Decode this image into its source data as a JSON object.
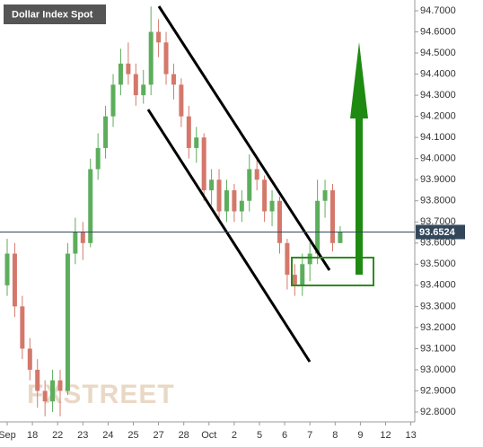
{
  "chart_data": {
    "type": "candlestick",
    "title": "Dollar Index Spot",
    "watermark": "FXSTREET",
    "categories": [
      "Sep",
      "18",
      "22",
      "23",
      "24",
      "25",
      "27",
      "28",
      "Oct",
      "2",
      "5",
      "6",
      "7",
      "8",
      "9",
      "12",
      "13"
    ],
    "x": [
      0,
      0.3,
      0.6,
      0.9,
      1.2,
      1.5,
      1.8,
      2.1,
      2.4,
      2.7,
      3.0,
      3.3,
      3.6,
      3.9,
      4.2,
      4.5,
      4.8,
      5.1,
      5.4,
      5.7,
      6.0,
      6.3,
      6.6,
      6.9,
      7.2,
      7.5,
      7.8,
      8.1,
      8.4,
      8.7,
      9.0,
      9.3,
      9.6,
      9.9,
      10.2,
      10.5,
      10.8,
      11.1,
      11.4,
      11.7,
      12.0,
      12.3,
      12.6,
      12.9,
      13.2
    ],
    "open": [
      93.4,
      93.55,
      93.3,
      93.1,
      93.0,
      92.9,
      92.85,
      92.95,
      92.9,
      93.55,
      93.65,
      93.6,
      93.95,
      94.05,
      94.2,
      94.35,
      94.45,
      94.4,
      94.3,
      94.35,
      94.6,
      94.55,
      94.4,
      94.35,
      94.2,
      94.05,
      94.1,
      93.85,
      93.9,
      93.75,
      93.85,
      93.75,
      93.8,
      93.95,
      93.9,
      93.75,
      93.8,
      93.6,
      93.45,
      93.4,
      93.5,
      93.55,
      93.8,
      93.85,
      93.6
    ],
    "high": [
      93.62,
      93.6,
      93.35,
      93.15,
      93.05,
      92.95,
      93.0,
      93.0,
      93.6,
      93.72,
      93.7,
      94.0,
      94.12,
      94.25,
      94.4,
      94.52,
      94.55,
      94.45,
      94.42,
      94.72,
      94.66,
      94.6,
      94.45,
      94.38,
      94.25,
      94.15,
      94.12,
      93.95,
      93.95,
      93.9,
      93.88,
      93.85,
      94.02,
      94.0,
      93.92,
      93.85,
      93.82,
      93.62,
      93.5,
      93.55,
      93.6,
      93.9,
      93.9,
      93.88,
      93.68
    ],
    "low": [
      93.35,
      93.25,
      93.05,
      92.95,
      92.82,
      92.78,
      92.8,
      92.78,
      92.88,
      93.5,
      93.52,
      93.58,
      93.9,
      94.0,
      94.15,
      94.3,
      94.35,
      94.25,
      94.26,
      94.3,
      94.48,
      94.35,
      94.28,
      94.15,
      94.0,
      93.98,
      93.8,
      93.78,
      93.7,
      93.7,
      93.7,
      93.7,
      93.75,
      93.85,
      93.7,
      93.68,
      93.55,
      93.38,
      93.35,
      93.35,
      93.42,
      93.5,
      93.72,
      93.56,
      93.6
    ],
    "close": [
      93.55,
      93.3,
      93.1,
      93.0,
      92.9,
      92.85,
      92.95,
      92.9,
      93.55,
      93.65,
      93.6,
      93.95,
      94.05,
      94.2,
      94.35,
      94.45,
      94.4,
      94.3,
      94.35,
      94.6,
      94.55,
      94.4,
      94.35,
      94.2,
      94.05,
      94.1,
      93.85,
      93.9,
      93.75,
      93.85,
      93.75,
      93.8,
      93.95,
      93.9,
      93.75,
      93.8,
      93.6,
      93.45,
      93.4,
      93.5,
      93.55,
      93.8,
      93.85,
      93.6,
      93.65
    ],
    "up_color": "#5cae5c",
    "down_color": "#d4786b",
    "current": {
      "value": 93.6524,
      "label": "93.6524"
    },
    "ylim": [
      92.75,
      94.75
    ],
    "yticks": [
      {
        "value": 92.8,
        "label": "92.8000"
      },
      {
        "value": 92.9,
        "label": "92.9000"
      },
      {
        "value": 93.0,
        "label": "93.0000"
      },
      {
        "value": 93.1,
        "label": "93.1000"
      },
      {
        "value": 93.2,
        "label": "93.2000"
      },
      {
        "value": 93.3,
        "label": "93.3000"
      },
      {
        "value": 93.4,
        "label": "93.4000"
      },
      {
        "value": 93.5,
        "label": "93.5000"
      },
      {
        "value": 93.6,
        "label": "93.6000"
      },
      {
        "value": 93.7,
        "label": "93.7000"
      },
      {
        "value": 93.8,
        "label": "93.8000"
      },
      {
        "value": 93.9,
        "label": "93.9000"
      },
      {
        "value": 94.0,
        "label": "94.0000"
      },
      {
        "value": 94.1,
        "label": "94.1000"
      },
      {
        "value": 94.2,
        "label": "94.2000"
      },
      {
        "value": 94.3,
        "label": "94.3000"
      },
      {
        "value": 94.4,
        "label": "94.4000"
      },
      {
        "value": 94.5,
        "label": "94.5000"
      },
      {
        "value": 94.6,
        "label": "94.6000"
      },
      {
        "value": 94.7,
        "label": "94.7000"
      }
    ]
  }
}
